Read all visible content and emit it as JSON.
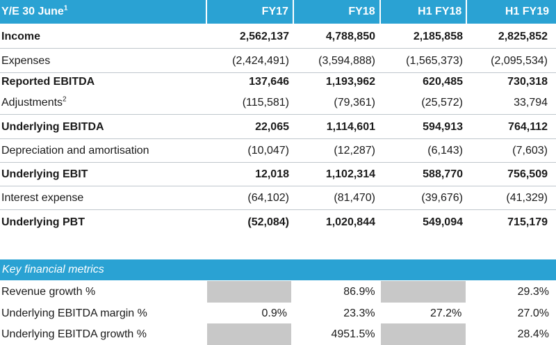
{
  "header": {
    "label": "Y/E 30 June",
    "label_note": "1",
    "columns": [
      "FY17",
      "FY18",
      "H1 FY18",
      "H1 FY19"
    ]
  },
  "rows": [
    {
      "label": "Income",
      "note": "",
      "values": [
        "2,562,137",
        "4,788,850",
        "2,185,858",
        "2,825,852"
      ]
    },
    {
      "label": "Expenses",
      "note": "",
      "values": [
        "(2,424,491)",
        "(3,594,888)",
        "(1,565,373)",
        "(2,095,534)"
      ]
    },
    {
      "label": "Reported EBITDA",
      "note": "",
      "values": [
        "137,646",
        "1,193,962",
        "620,485",
        "730,318"
      ]
    },
    {
      "label": "Adjustments",
      "note": "2",
      "values": [
        "(115,581)",
        "(79,361)",
        "(25,572)",
        "33,794"
      ]
    },
    {
      "label": "Underlying EBITDA",
      "note": "",
      "values": [
        "22,065",
        "1,114,601",
        "594,913",
        "764,112"
      ]
    },
    {
      "label": "Depreciation and amortisation",
      "note": "",
      "values": [
        "(10,047)",
        "(12,287)",
        "(6,143)",
        "(7,603)"
      ]
    },
    {
      "label": "Underlying EBIT",
      "note": "",
      "values": [
        "12,018",
        "1,102,314",
        "588,770",
        "756,509"
      ]
    },
    {
      "label": "Interest expense",
      "note": "",
      "values": [
        "(64,102)",
        "(81,470)",
        "(39,676)",
        "(41,329)"
      ]
    },
    {
      "label": "Underlying PBT",
      "note": "",
      "values": [
        "(52,084)",
        "1,020,844",
        "549,094",
        "715,179"
      ]
    }
  ],
  "metrics": {
    "title": "Key financial metrics",
    "rows": [
      {
        "label": "Revenue growth %",
        "values": [
          "",
          "86.9%",
          "",
          "29.3%"
        ]
      },
      {
        "label": "Underlying EBITDA margin %",
        "values": [
          "0.9%",
          "23.3%",
          "27.2%",
          "27.0%"
        ]
      },
      {
        "label": "Underlying EBITDA growth %",
        "values": [
          "",
          "4951.5%",
          "",
          "28.4%"
        ]
      }
    ]
  }
}
